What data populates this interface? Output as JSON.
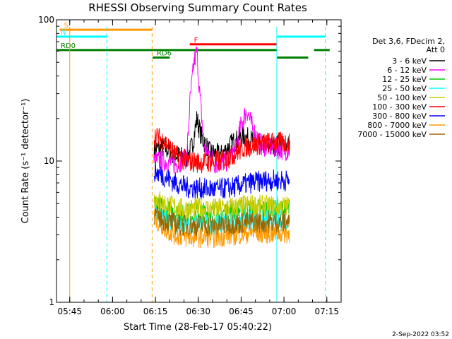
{
  "chart_data": {
    "type": "line",
    "title": "RHESSI Observing Summary Count Rates",
    "xlabel": "Start Time (28-Feb-17 05:40:22)",
    "ylabel": "Count Rate (s⁻¹ detector⁻¹)",
    "y_scale": "log",
    "ylim": [
      1,
      100
    ],
    "xlim": [
      "05:40:22",
      "07:20:00"
    ],
    "y_ticks": [
      "1",
      "10",
      "100"
    ],
    "x_ticks": [
      "05:45",
      "06:00",
      "06:15",
      "06:30",
      "06:45",
      "07:00",
      "07:15"
    ],
    "legend": {
      "placement": "right",
      "header": [
        "Det 3,6, FDecim 2,",
        "Att 0"
      ],
      "entries": [
        {
          "name": "3 - 6 keV",
          "color": "#000000"
        },
        {
          "name": "6 - 12 keV",
          "color": "#ff00ff"
        },
        {
          "name": "12 - 25 keV",
          "color": "#00cc00"
        },
        {
          "name": "25 - 50 keV",
          "color": "#00ffff"
        },
        {
          "name": "50 - 100 keV",
          "color": "#cccc00"
        },
        {
          "name": "100 - 300 keV",
          "color": "#ff0000"
        },
        {
          "name": "300 - 800 keV",
          "color": "#0000ff"
        },
        {
          "name": "800 - 7000 keV",
          "color": "#ff9900"
        },
        {
          "name": "7000 - 15000 keV",
          "color": "#996600"
        }
      ]
    },
    "flags": [
      {
        "label": "S",
        "color": "#ff9900",
        "y": 85,
        "segments": [
          [
            "05:41:30",
            "06:13:50"
          ]
        ]
      },
      {
        "label": "N",
        "color": "#00ffff",
        "y": 76,
        "segments": [
          [
            "05:40:22",
            "05:58:00"
          ],
          [
            "06:57:30",
            "07:14:30"
          ]
        ]
      },
      {
        "label": "F",
        "color": "#ff0000",
        "y": 67,
        "segments": [
          [
            "06:27:00",
            "06:57:30"
          ]
        ]
      },
      {
        "label": "RD0",
        "color": "#008000",
        "y": 61,
        "segments": [
          [
            "05:40:22",
            "06:57:30"
          ],
          [
            "07:10:30",
            "07:16:00"
          ]
        ]
      },
      {
        "label": "RD6",
        "color": "#008000",
        "y": 54,
        "segments": [
          [
            "06:14:00",
            "06:20:00"
          ],
          [
            "06:57:30",
            "07:08:30"
          ]
        ]
      }
    ],
    "verticals": [
      {
        "x": "05:45:00",
        "color": "#ff9900",
        "style": "solid"
      },
      {
        "x": "05:58:00",
        "color": "#00ffff",
        "style": "dashed"
      },
      {
        "x": "06:13:50",
        "color": "#ff9900",
        "style": "dashed"
      },
      {
        "x": "06:57:30",
        "color": "#00ffff",
        "style": "solid"
      },
      {
        "x": "07:14:30",
        "color": "#00ffff",
        "style": "dashed"
      }
    ],
    "data_start": "06:14:30",
    "data_end": "07:02:00",
    "series": [
      {
        "name": "3 - 6 keV",
        "color": "#000000",
        "x": [
          "06:14:30",
          "06:18:00",
          "06:22:00",
          "06:26:00",
          "06:28:00",
          "06:29:30",
          "06:31:00",
          "06:34:00",
          "06:38:00",
          "06:42:00",
          "06:46:00",
          "06:50:00",
          "06:54:00",
          "06:58:00",
          "07:02:00"
        ],
        "y": [
          12,
          12.5,
          11,
          10.5,
          13,
          20,
          15,
          11.5,
          11,
          13.5,
          15,
          13.5,
          12.5,
          13,
          13
        ]
      },
      {
        "name": "6 - 12 keV",
        "color": "#ff00ff",
        "x": [
          "06:14:30",
          "06:18:00",
          "06:22:00",
          "06:26:00",
          "06:27:00",
          "06:28:30",
          "06:29:30",
          "06:30:30",
          "06:32:00",
          "06:36:00",
          "06:40:00",
          "06:43:00",
          "06:45:00",
          "06:47:00",
          "06:49:00",
          "06:52:00",
          "06:56:00",
          "07:00:00",
          "07:02:00"
        ],
        "y": [
          10,
          10,
          9.5,
          10.5,
          25,
          50,
          60,
          30,
          13,
          9.5,
          10,
          12,
          18,
          23,
          17,
          13,
          12.5,
          12,
          12
        ]
      },
      {
        "name": "12 - 25 keV",
        "color": "#00cc00",
        "x": [
          "06:14:30",
          "06:18:00",
          "06:24:00",
          "06:30:00",
          "06:36:00",
          "06:42:00",
          "06:48:00",
          "06:54:00",
          "07:02:00"
        ],
        "y": [
          5,
          4.5,
          4.2,
          4.3,
          4.3,
          4.4,
          4.6,
          4.5,
          4.5
        ]
      },
      {
        "name": "25 - 50 keV",
        "color": "#00ffff",
        "x": [
          "06:14:30",
          "06:18:00",
          "06:24:00",
          "06:30:00",
          "06:36:00",
          "06:42:00",
          "06:48:00",
          "06:54:00",
          "07:02:00"
        ],
        "y": [
          4.5,
          3.9,
          3.6,
          3.6,
          3.6,
          3.7,
          3.8,
          3.8,
          3.8
        ]
      },
      {
        "name": "50 - 100 keV",
        "color": "#cccc00",
        "x": [
          "06:14:30",
          "06:18:00",
          "06:24:00",
          "06:30:00",
          "06:36:00",
          "06:42:00",
          "06:48:00",
          "06:54:00",
          "07:02:00"
        ],
        "y": [
          5.5,
          5,
          4.6,
          4.6,
          4.6,
          4.7,
          4.9,
          4.8,
          4.8
        ]
      },
      {
        "name": "100 - 300 keV",
        "color": "#ff0000",
        "x": [
          "06:14:30",
          "06:18:00",
          "06:22:00",
          "06:26:00",
          "06:30:00",
          "06:34:00",
          "06:38:00",
          "06:42:00",
          "06:46:00",
          "06:50:00",
          "06:54:00",
          "06:58:00",
          "07:02:00"
        ],
        "y": [
          15,
          14,
          11,
          10,
          9.8,
          9.8,
          10,
          11,
          12.5,
          13,
          13.5,
          13.5,
          13.5
        ]
      },
      {
        "name": "300 - 800 keV",
        "color": "#0000ff",
        "x": [
          "06:14:30",
          "06:18:00",
          "06:22:00",
          "06:26:00",
          "06:30:00",
          "06:36:00",
          "06:42:00",
          "06:48:00",
          "06:54:00",
          "07:02:00"
        ],
        "y": [
          8.5,
          7.8,
          7,
          6.5,
          6.4,
          6.3,
          6.5,
          7,
          7.3,
          7.3
        ]
      },
      {
        "name": "800 - 7000 keV",
        "color": "#ff9900",
        "x": [
          "06:14:30",
          "06:18:00",
          "06:22:00",
          "06:26:00",
          "06:30:00",
          "06:36:00",
          "06:42:00",
          "06:48:00",
          "06:54:00",
          "07:02:00"
        ],
        "y": [
          4,
          3.4,
          3,
          2.9,
          2.9,
          2.9,
          3,
          3.1,
          3.1,
          3.1
        ]
      },
      {
        "name": "7000 - 15000 keV",
        "color": "#996600",
        "x": [
          "06:14:30",
          "06:18:00",
          "06:24:00",
          "06:30:00",
          "06:36:00",
          "06:42:00",
          "06:48:00",
          "06:54:00",
          "07:02:00"
        ],
        "y": [
          4.2,
          3.8,
          3.5,
          3.5,
          3.5,
          3.6,
          3.7,
          3.7,
          3.7
        ]
      }
    ]
  },
  "footer": {
    "timestamp": "2-Sep-2022 03:52"
  }
}
